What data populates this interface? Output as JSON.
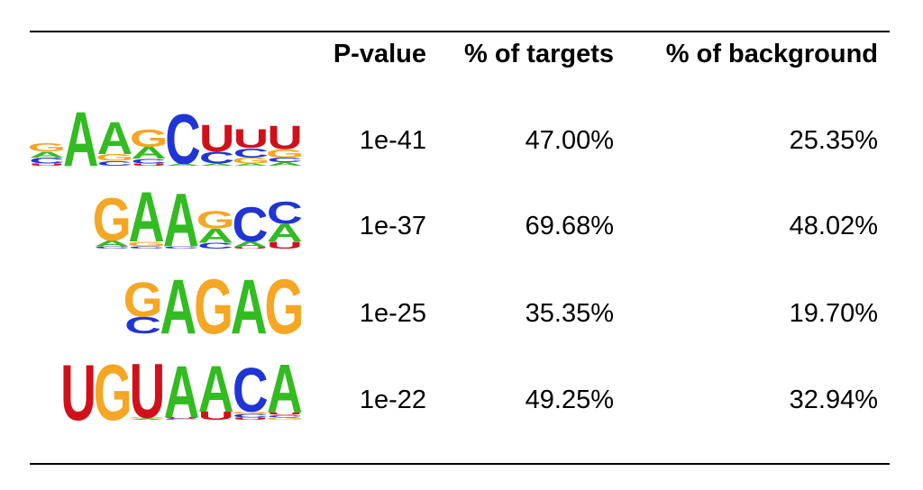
{
  "table": {
    "headers": {
      "pvalue": "P-value",
      "targets": "% of targets",
      "background": "% of background"
    },
    "rows": [
      {
        "pvalue": "1e-41",
        "targets": "47.00%",
        "background": "25.35%",
        "motif": [
          [
            [
              "U",
              0.04
            ],
            [
              "C",
              0.1
            ],
            [
              "A",
              0.1
            ],
            [
              "G",
              0.14
            ]
          ],
          [
            [
              "A",
              0.94
            ]
          ],
          [
            [
              "C",
              0.08
            ],
            [
              "G",
              0.12
            ],
            [
              "A",
              0.56
            ]
          ],
          [
            [
              "U",
              0.04
            ],
            [
              "C",
              0.08
            ],
            [
              "A",
              0.2
            ],
            [
              "G",
              0.3
            ]
          ],
          [
            [
              "A",
              0.04
            ],
            [
              "C",
              0.86
            ]
          ],
          [
            [
              "A",
              0.04
            ],
            [
              "C",
              0.2
            ],
            [
              "U",
              0.46
            ]
          ],
          [
            [
              "A",
              0.04
            ],
            [
              "G",
              0.1
            ],
            [
              "C",
              0.16
            ],
            [
              "U",
              0.32
            ]
          ],
          [
            [
              "A",
              0.06
            ],
            [
              "C",
              0.08
            ],
            [
              "G",
              0.14
            ],
            [
              "U",
              0.4
            ]
          ]
        ]
      },
      {
        "pvalue": "1e-37",
        "targets": "69.68%",
        "background": "48.02%",
        "motif": [
          [
            [
              "C",
              0.04
            ],
            [
              "A",
              0.1
            ],
            [
              "G",
              0.74
            ]
          ],
          [
            [
              "C",
              0.04
            ],
            [
              "G",
              0.08
            ],
            [
              "A",
              0.86
            ]
          ],
          [
            [
              "C",
              0.04
            ],
            [
              "A",
              0.92
            ]
          ],
          [
            [
              "C",
              0.1
            ],
            [
              "A",
              0.24
            ],
            [
              "G",
              0.3
            ]
          ],
          [
            [
              "U",
              0.02
            ],
            [
              "A",
              0.1
            ],
            [
              "C",
              0.6
            ]
          ],
          [
            [
              "U",
              0.12
            ],
            [
              "A",
              0.3
            ],
            [
              "C",
              0.38
            ]
          ]
        ]
      },
      {
        "pvalue": "1e-25",
        "targets": "35.35%",
        "background": "19.70%",
        "motif": [
          [
            [
              "C",
              0.3
            ],
            [
              "G",
              0.64
            ]
          ],
          [
            [
              "A",
              1.0
            ]
          ],
          [
            [
              "G",
              1.0
            ]
          ],
          [
            [
              "A",
              1.0
            ]
          ],
          [
            [
              "G",
              1.0
            ]
          ]
        ]
      },
      {
        "pvalue": "1e-22",
        "targets": "49.25%",
        "background": "32.94%",
        "motif": [
          [
            [
              "U",
              0.96
            ]
          ],
          [
            [
              "G",
              0.96
            ]
          ],
          [
            [
              "A",
              0.02
            ],
            [
              "G",
              0.02
            ],
            [
              "U",
              0.94
            ]
          ],
          [
            [
              "C",
              0.02
            ],
            [
              "U",
              0.02
            ],
            [
              "A",
              0.9
            ]
          ],
          [
            [
              "U",
              0.14
            ],
            [
              "A",
              0.8
            ]
          ],
          [
            [
              "U",
              0.04
            ],
            [
              "C",
              0.06
            ],
            [
              "G",
              0.04
            ],
            [
              "C",
              0.76
            ]
          ],
          [
            [
              "G",
              0.04
            ],
            [
              "C",
              0.04
            ],
            [
              "U",
              0.04
            ],
            [
              "A",
              0.84
            ]
          ]
        ]
      }
    ]
  },
  "colors": {
    "A": "#33bb22",
    "C": "#1f35d6",
    "G": "#f5a623",
    "U": "#d1101a"
  }
}
